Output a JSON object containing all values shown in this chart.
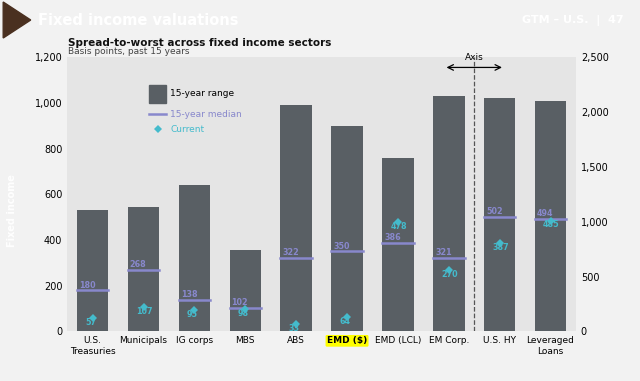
{
  "title": "Fixed income valuations",
  "gtm_label": "GTM – U.S.  |  47",
  "subtitle": "Spread-to-worst across fixed income sectors",
  "subtitle2": "Basis points, past 15 years",
  "categories": [
    "U.S.\nTreasuries",
    "Municipals",
    "IG corps",
    "MBS",
    "ABS",
    "EMD ($)",
    "EMD (LCL)",
    "EM Corp.",
    "U.S. HY",
    "Leveraged\nLoans"
  ],
  "bar_high": [
    530,
    545,
    640,
    355,
    990,
    900,
    760,
    1030,
    1020,
    1010
  ],
  "median": [
    180,
    268,
    138,
    102,
    322,
    350,
    386,
    321,
    502,
    494
  ],
  "current": [
    57,
    107,
    95,
    98,
    33,
    64,
    478,
    270,
    387,
    485
  ],
  "bar_color": "#595f64",
  "median_color": "#8888cc",
  "current_color": "#44bbcc",
  "highlight_index": 5,
  "highlight_color": "#ffff00",
  "ylim_left": [
    0,
    1200
  ],
  "ylim_right": [
    0,
    2500
  ],
  "bg_color": "#e5e5e5",
  "header_bg": "#808080",
  "header_text": "white",
  "left_panel_color": "#4a7090",
  "dashed_line_after_index": 7
}
